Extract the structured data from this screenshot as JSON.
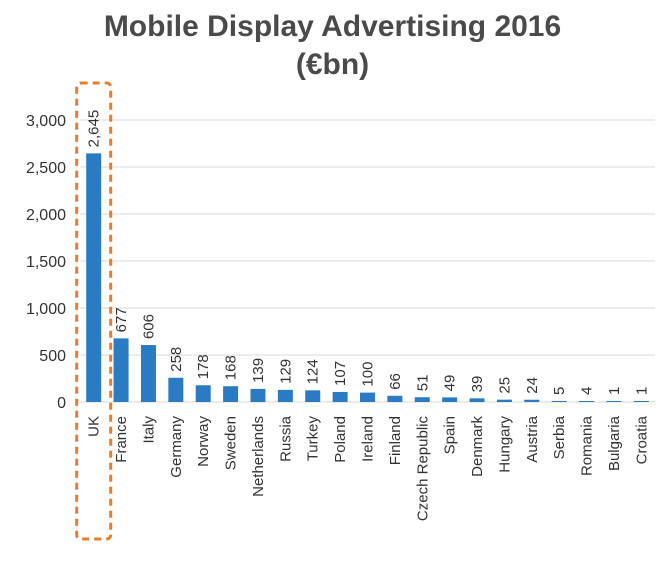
{
  "chart_data": {
    "type": "bar",
    "title_line1": "Mobile Display Advertising 2016",
    "title_line2": "(€bn)",
    "xlabel": "",
    "ylabel": "",
    "ylim": [
      0,
      3000
    ],
    "yticks": [
      0,
      500,
      1000,
      1500,
      2000,
      2500,
      3000
    ],
    "ytick_labels": [
      "0",
      "500",
      "1,000",
      "1,500",
      "2,000",
      "2,500",
      "3,000"
    ],
    "grid": true,
    "categories": [
      "UK",
      "France",
      "Italy",
      "Germany",
      "Norway",
      "Sweden",
      "Netherlands",
      "Russia",
      "Turkey",
      "Poland",
      "Ireland",
      "Finland",
      "Czech Republic",
      "Spain",
      "Denmark",
      "Hungary",
      "Austria",
      "Serbia",
      "Romania",
      "Bulgaria",
      "Croatia"
    ],
    "values": [
      2645,
      677,
      606,
      258,
      178,
      168,
      139,
      129,
      124,
      107,
      100,
      66,
      51,
      49,
      39,
      25,
      24,
      5,
      4,
      1,
      1
    ],
    "value_labels": [
      "2,645",
      "677",
      "606",
      "258",
      "178",
      "168",
      "139",
      "129",
      "124",
      "107",
      "100",
      "66",
      "51",
      "49",
      "39",
      "25",
      "24",
      "5",
      "4",
      "1",
      "1"
    ],
    "highlight_category": "UK",
    "colors": {
      "bar": "#2b7bc4",
      "grid": "#d9d9d9",
      "highlight": "#e87c2e",
      "title": "#4a4a4a"
    }
  }
}
